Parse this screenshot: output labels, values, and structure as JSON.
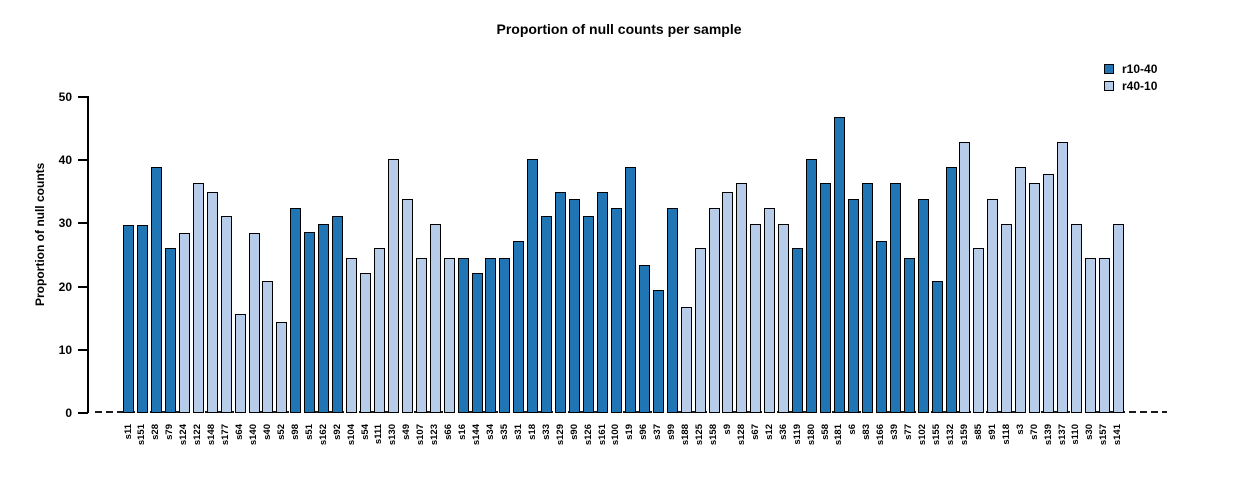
{
  "chart_data": {
    "type": "bar",
    "title": "Proportion of null counts per sample",
    "xlabel": "",
    "ylabel": "Proportion of null counts",
    "ylim": [
      0,
      50
    ],
    "yticks": [
      0,
      10,
      20,
      30,
      40,
      50
    ],
    "grid": false,
    "legend_position": "top-right",
    "zero_line_style": "dashed",
    "groups": [
      {
        "name": "r10-40",
        "color": "#2076B4"
      },
      {
        "name": "r40-10",
        "color": "#B7CCE8"
      }
    ],
    "bars": [
      {
        "label": "s11",
        "value": 29.8,
        "group": "r10-40"
      },
      {
        "label": "s151",
        "value": 29.8,
        "group": "r10-40"
      },
      {
        "label": "s28",
        "value": 39.0,
        "group": "r10-40"
      },
      {
        "label": "s79",
        "value": 26.1,
        "group": "r10-40"
      },
      {
        "label": "s124",
        "value": 28.5,
        "group": "r40-10"
      },
      {
        "label": "s122",
        "value": 36.4,
        "group": "r40-10"
      },
      {
        "label": "s148",
        "value": 35.0,
        "group": "r40-10"
      },
      {
        "label": "s177",
        "value": 31.2,
        "group": "r40-10"
      },
      {
        "label": "s64",
        "value": 15.7,
        "group": "r40-10"
      },
      {
        "label": "s140",
        "value": 28.5,
        "group": "r40-10"
      },
      {
        "label": "s40",
        "value": 20.9,
        "group": "r40-10"
      },
      {
        "label": "s52",
        "value": 14.4,
        "group": "r40-10"
      },
      {
        "label": "s98",
        "value": 32.5,
        "group": "r10-40"
      },
      {
        "label": "s51",
        "value": 28.6,
        "group": "r10-40"
      },
      {
        "label": "s162",
        "value": 29.9,
        "group": "r10-40"
      },
      {
        "label": "s92",
        "value": 31.2,
        "group": "r10-40"
      },
      {
        "label": "s104",
        "value": 24.6,
        "group": "r40-10"
      },
      {
        "label": "s54",
        "value": 22.1,
        "group": "r40-10"
      },
      {
        "label": "s111",
        "value": 26.1,
        "group": "r40-10"
      },
      {
        "label": "s130",
        "value": 40.2,
        "group": "r40-10"
      },
      {
        "label": "s49",
        "value": 33.8,
        "group": "r40-10"
      },
      {
        "label": "s107",
        "value": 24.6,
        "group": "r40-10"
      },
      {
        "label": "s123",
        "value": 29.9,
        "group": "r40-10"
      },
      {
        "label": "s66",
        "value": 24.6,
        "group": "r40-10"
      },
      {
        "label": "s16",
        "value": 24.6,
        "group": "r10-40"
      },
      {
        "label": "s144",
        "value": 22.1,
        "group": "r10-40"
      },
      {
        "label": "s34",
        "value": 24.6,
        "group": "r10-40"
      },
      {
        "label": "s35",
        "value": 24.6,
        "group": "r10-40"
      },
      {
        "label": "s31",
        "value": 27.3,
        "group": "r10-40"
      },
      {
        "label": "s18",
        "value": 40.2,
        "group": "r10-40"
      },
      {
        "label": "s33",
        "value": 31.2,
        "group": "r10-40"
      },
      {
        "label": "s129",
        "value": 35.0,
        "group": "r10-40"
      },
      {
        "label": "s90",
        "value": 33.8,
        "group": "r10-40"
      },
      {
        "label": "s126",
        "value": 31.2,
        "group": "r10-40"
      },
      {
        "label": "s161",
        "value": 35.0,
        "group": "r10-40"
      },
      {
        "label": "s100",
        "value": 32.5,
        "group": "r10-40"
      },
      {
        "label": "s19",
        "value": 39.0,
        "group": "r10-40"
      },
      {
        "label": "s96",
        "value": 23.4,
        "group": "r10-40"
      },
      {
        "label": "s37",
        "value": 19.5,
        "group": "r10-40"
      },
      {
        "label": "s99",
        "value": 32.5,
        "group": "r10-40"
      },
      {
        "label": "s188",
        "value": 16.8,
        "group": "r40-10"
      },
      {
        "label": "s125",
        "value": 26.1,
        "group": "r40-10"
      },
      {
        "label": "s158",
        "value": 32.5,
        "group": "r40-10"
      },
      {
        "label": "s9",
        "value": 35.0,
        "group": "r40-10"
      },
      {
        "label": "s128",
        "value": 36.4,
        "group": "r40-10"
      },
      {
        "label": "s67",
        "value": 29.9,
        "group": "r40-10"
      },
      {
        "label": "s12",
        "value": 32.5,
        "group": "r40-10"
      },
      {
        "label": "s36",
        "value": 29.9,
        "group": "r40-10"
      },
      {
        "label": "s119",
        "value": 26.1,
        "group": "r10-40"
      },
      {
        "label": "s180",
        "value": 40.2,
        "group": "r10-40"
      },
      {
        "label": "s58",
        "value": 36.4,
        "group": "r10-40"
      },
      {
        "label": "s181",
        "value": 46.8,
        "group": "r10-40"
      },
      {
        "label": "s6",
        "value": 33.8,
        "group": "r10-40"
      },
      {
        "label": "s83",
        "value": 36.4,
        "group": "r10-40"
      },
      {
        "label": "s166",
        "value": 27.3,
        "group": "r10-40"
      },
      {
        "label": "s39",
        "value": 36.4,
        "group": "r10-40"
      },
      {
        "label": "s77",
        "value": 24.6,
        "group": "r10-40"
      },
      {
        "label": "s102",
        "value": 33.8,
        "group": "r10-40"
      },
      {
        "label": "s155",
        "value": 20.9,
        "group": "r10-40"
      },
      {
        "label": "s132",
        "value": 39.0,
        "group": "r10-40"
      },
      {
        "label": "s159",
        "value": 42.9,
        "group": "r40-10"
      },
      {
        "label": "s85",
        "value": 26.1,
        "group": "r40-10"
      },
      {
        "label": "s91",
        "value": 33.8,
        "group": "r40-10"
      },
      {
        "label": "s118",
        "value": 29.9,
        "group": "r40-10"
      },
      {
        "label": "s3",
        "value": 39.0,
        "group": "r40-10"
      },
      {
        "label": "s70",
        "value": 36.4,
        "group": "r40-10"
      },
      {
        "label": "s139",
        "value": 37.8,
        "group": "r40-10"
      },
      {
        "label": "s137",
        "value": 42.9,
        "group": "r40-10"
      },
      {
        "label": "s110",
        "value": 29.9,
        "group": "r40-10"
      },
      {
        "label": "s30",
        "value": 24.6,
        "group": "r40-10"
      },
      {
        "label": "s157",
        "value": 24.6,
        "group": "r40-10"
      },
      {
        "label": "s141",
        "value": 29.9,
        "group": "r40-10"
      }
    ]
  }
}
